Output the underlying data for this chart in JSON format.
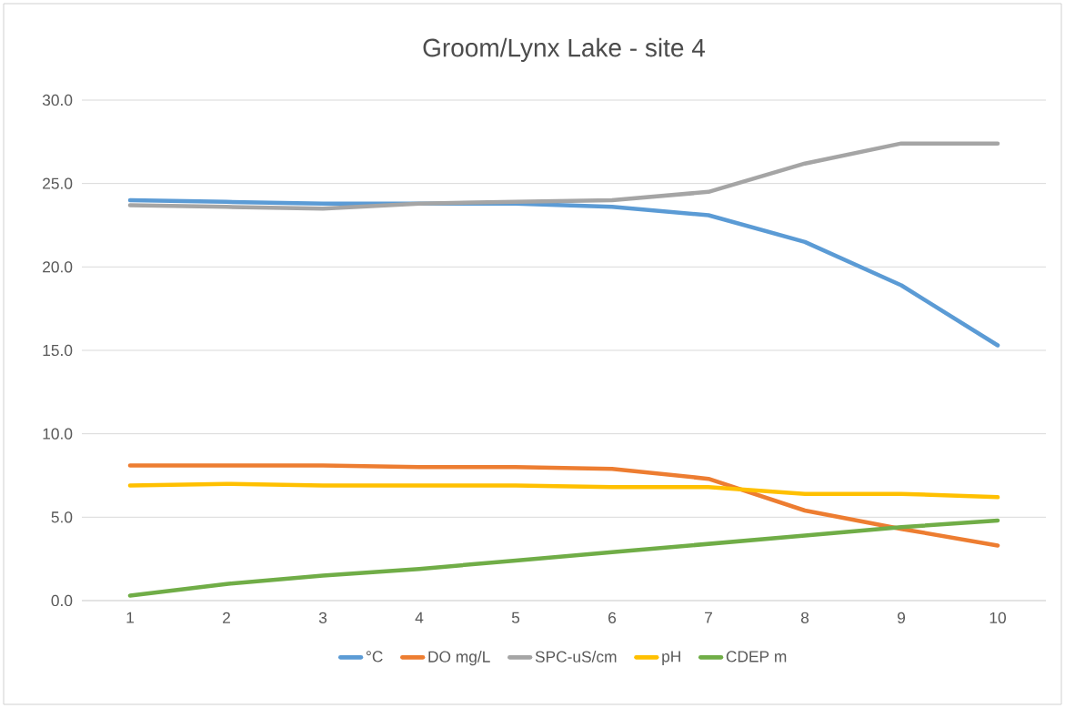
{
  "chart_data": {
    "type": "line",
    "title": "Groom/Lynx Lake - site 4",
    "categories": [
      "1",
      "2",
      "3",
      "4",
      "5",
      "6",
      "7",
      "8",
      "9",
      "10"
    ],
    "series": [
      {
        "name": "°C",
        "color": "#5b9bd5",
        "values": [
          24.0,
          23.9,
          23.8,
          23.8,
          23.8,
          23.6,
          23.1,
          21.5,
          18.9,
          15.3
        ]
      },
      {
        "name": "DO mg/L",
        "color": "#ed7d31",
        "values": [
          8.1,
          8.1,
          8.1,
          8.0,
          8.0,
          7.9,
          7.3,
          5.4,
          4.3,
          3.3
        ]
      },
      {
        "name": "SPC-uS/cm",
        "color": "#a5a5a5",
        "values": [
          23.7,
          23.6,
          23.5,
          23.8,
          23.9,
          24.0,
          24.5,
          26.2,
          27.4,
          27.4
        ]
      },
      {
        "name": "pH",
        "color": "#ffc000",
        "values": [
          6.9,
          7.0,
          6.9,
          6.9,
          6.9,
          6.8,
          6.8,
          6.4,
          6.4,
          6.2
        ]
      },
      {
        "name": "CDEP m",
        "color": "#70ad47",
        "values": [
          0.3,
          1.0,
          1.5,
          1.9,
          2.4,
          2.9,
          3.4,
          3.9,
          4.4,
          4.8
        ]
      }
    ],
    "ylim": [
      0,
      30
    ],
    "yticks": [
      {
        "value": 0,
        "label": "0.0"
      },
      {
        "value": 5,
        "label": "5.0"
      },
      {
        "value": 10,
        "label": "10.0"
      },
      {
        "value": 15,
        "label": "15.0"
      },
      {
        "value": 20,
        "label": "20.0"
      },
      {
        "value": 25,
        "label": "25.0"
      },
      {
        "value": 30,
        "label": "30.0"
      }
    ],
    "grid": "y",
    "legend": "bottom",
    "marker": "none",
    "line_style": "solid"
  }
}
